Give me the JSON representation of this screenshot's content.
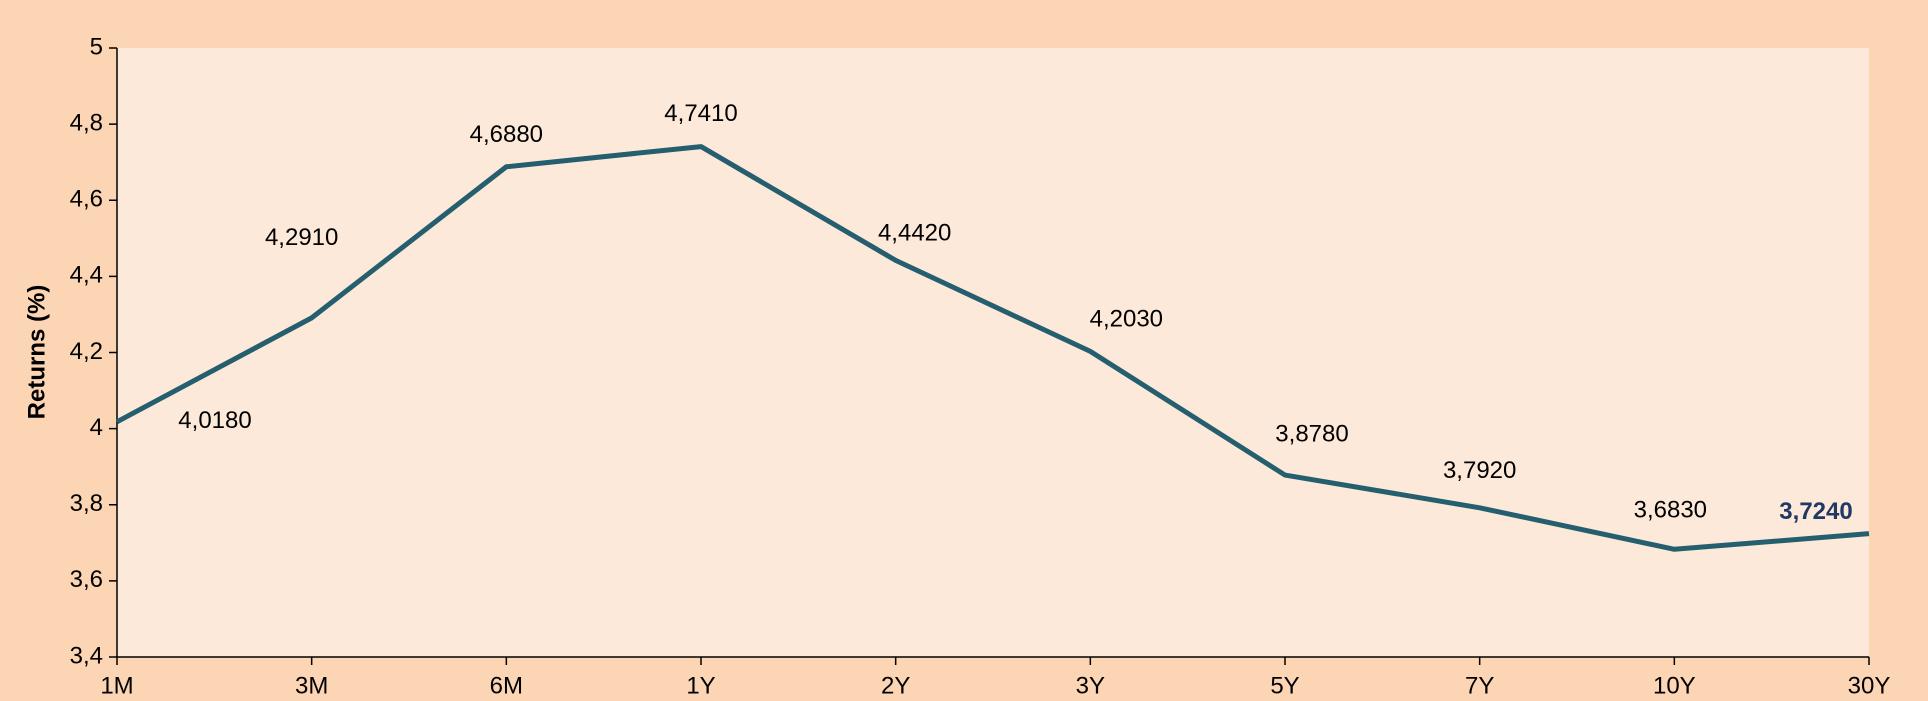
{
  "chart_data": {
    "type": "line",
    "y_label": "Returns (%)",
    "categories": [
      "1M",
      "3M",
      "6M",
      "1Y",
      "2Y",
      "3Y",
      "5Y",
      "7Y",
      "10Y",
      "30Y"
    ],
    "series": [
      {
        "color": "#255e6e",
        "values": [
          4.018,
          4.291,
          4.688,
          4.741,
          4.442,
          4.203,
          3.878,
          3.792,
          3.683,
          3.724
        ],
        "value_labels": [
          "4,0180",
          "4,2910",
          "4,6880",
          "4,7410",
          "4,4420",
          "4,2030",
          "3,8780",
          "3,7920",
          "3,6830",
          "3,7240"
        ]
      }
    ],
    "ylim": [
      3.4,
      5
    ],
    "yticks": [
      {
        "value": 3.4,
        "label": "3,4"
      },
      {
        "value": 3.6,
        "label": "3,6"
      },
      {
        "value": 3.8,
        "label": "3,8"
      },
      4,
      {
        "value": 4.2,
        "label": "4,2"
      },
      {
        "value": 4.4,
        "label": "4,4"
      },
      {
        "value": 4.6,
        "label": "4,6"
      },
      {
        "value": 4.8,
        "label": "4,8"
      },
      5
    ]
  }
}
